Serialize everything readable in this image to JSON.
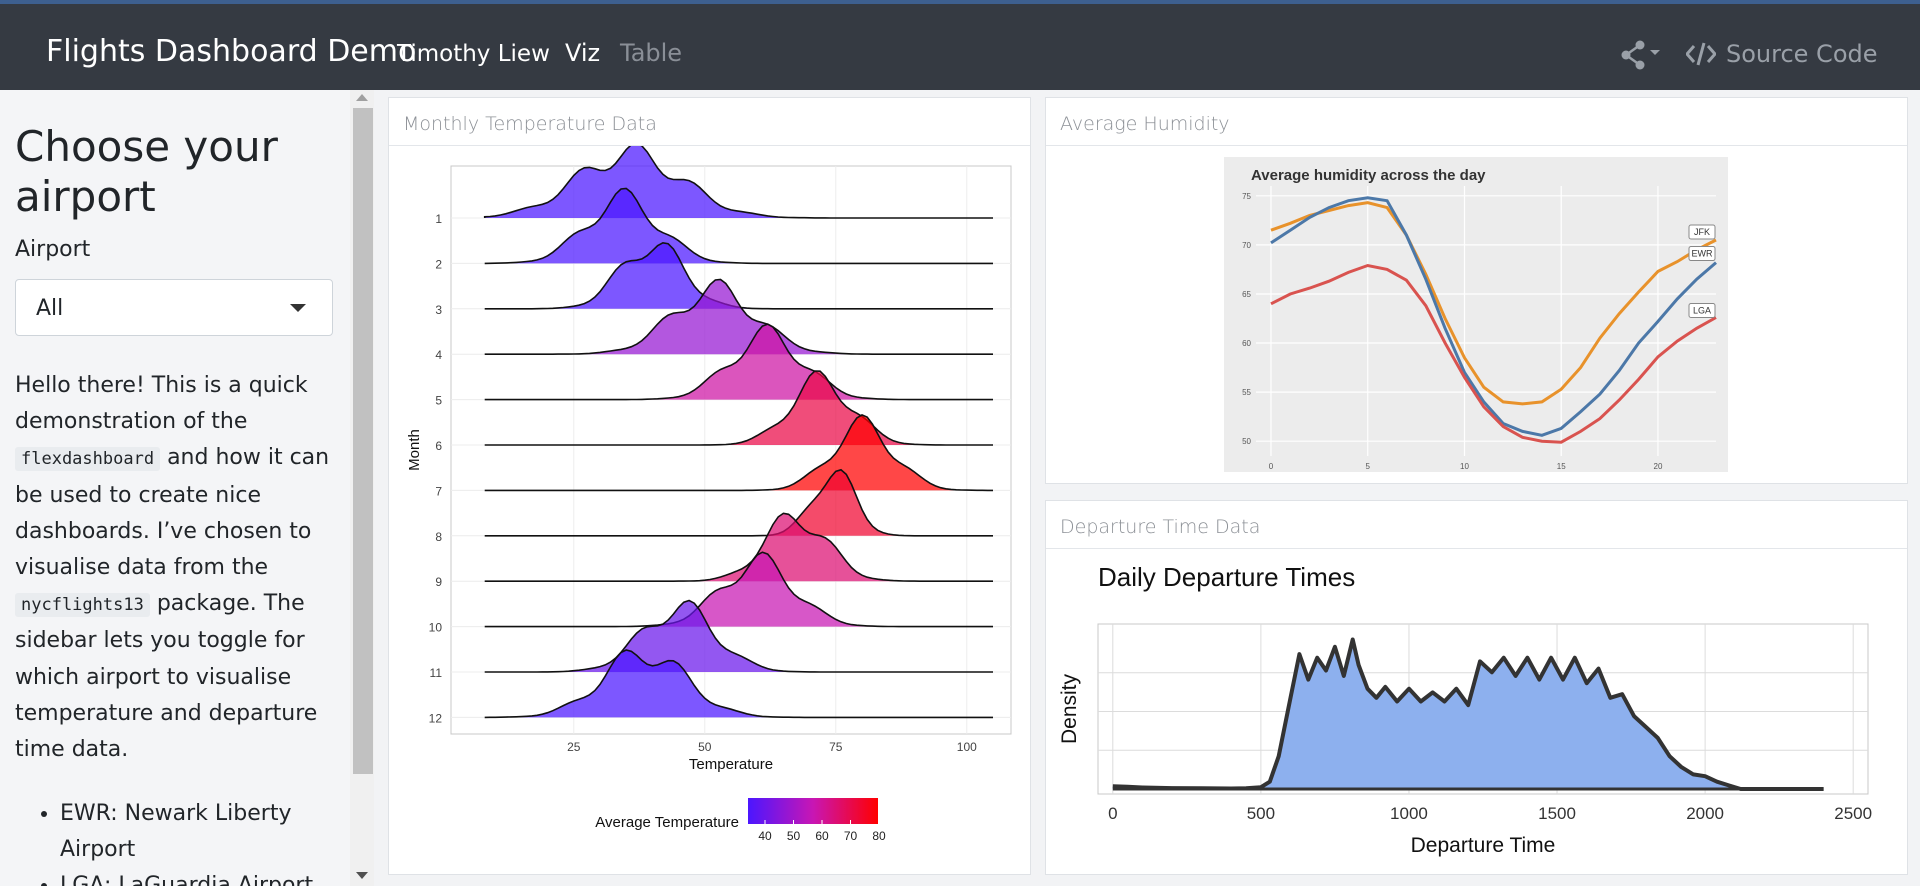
{
  "nav": {
    "title": "Flights Dashboard Demo",
    "author": "Timothy Liew",
    "tabs": [
      "Viz",
      "Table"
    ],
    "active_tab": "Viz",
    "source_label": "Source Code",
    "share_icon": "share-icon",
    "code_icon": "code-icon"
  },
  "sidebar": {
    "heading": "Choose your airport",
    "select_label": "Airport",
    "select_value": "All",
    "intro_before": "Hello there! This is a quick demonstration of the",
    "code1": "flexdashboard",
    "intro_mid": "and how it can be used to create nice dashboards. I’ve chosen to visualise data from the",
    "code2": "nycflights13",
    "intro_after": "package. The sidebar lets you toggle for which airport to visualise temperature and departure time data.",
    "airports": [
      "EWR: Newark Liberty Airport",
      "LGA: LaGuardia Airport"
    ]
  },
  "cards": {
    "temperature": "Monthly Temperature Data",
    "humidity": "Average Humidity",
    "departure": "Departure Time Data"
  },
  "chart_data": [
    {
      "type": "area",
      "subtype": "ridgeline",
      "title": "",
      "xlabel": "Temperature",
      "ylabel": "Month",
      "xlim": [
        5,
        105
      ],
      "xticks": [
        25,
        50,
        75,
        100
      ],
      "months": [
        "1",
        "2",
        "3",
        "4",
        "5",
        "6",
        "7",
        "8",
        "9",
        "10",
        "11",
        "12"
      ],
      "mean_temperature": [
        35.6,
        34.3,
        39.9,
        51.8,
        61.8,
        72.2,
        80.1,
        74.5,
        67.4,
        60.1,
        45.0,
        38.4
      ],
      "sd": [
        10,
        7,
        6,
        8,
        7,
        6,
        6,
        4,
        6,
        7,
        7,
        8
      ],
      "legend": {
        "title": "Average Temperature",
        "ticks": [
          40,
          50,
          60,
          70,
          80
        ],
        "colors": [
          "#4b16ff",
          "#ff0000"
        ],
        "position": "bottom"
      }
    },
    {
      "type": "line",
      "title": "Average humidity across the day",
      "xlabel": "",
      "ylabel": "",
      "xlim": [
        0,
        23
      ],
      "ylim": [
        49,
        76
      ],
      "xticks": [
        0,
        5,
        10,
        15,
        20
      ],
      "yticks": [
        50,
        55,
        60,
        65,
        70,
        75
      ],
      "x": [
        0,
        1,
        2,
        3,
        4,
        5,
        6,
        7,
        8,
        9,
        10,
        11,
        12,
        13,
        14,
        15,
        16,
        17,
        18,
        19,
        20,
        21,
        22,
        23
      ],
      "series": [
        {
          "name": "JFK",
          "color": "#e8922b",
          "values": [
            71.5,
            72.2,
            73.0,
            73.5,
            74.0,
            74.3,
            73.8,
            71.0,
            67.0,
            62.5,
            58.5,
            55.5,
            54.0,
            53.8,
            54.0,
            55.3,
            57.5,
            60.5,
            63.0,
            65.2,
            67.3,
            68.3,
            69.5,
            70.5
          ]
        },
        {
          "name": "EWR",
          "color": "#4c78a8",
          "values": [
            70.2,
            71.5,
            72.8,
            73.8,
            74.5,
            74.8,
            74.5,
            71.0,
            66.5,
            61.5,
            57.0,
            54.0,
            51.8,
            51.0,
            50.6,
            51.3,
            53.0,
            54.8,
            57.2,
            60.0,
            62.2,
            64.5,
            66.5,
            68.2
          ]
        },
        {
          "name": "LGA",
          "color": "#d9534f",
          "values": [
            64.0,
            65.0,
            65.6,
            66.3,
            67.2,
            67.9,
            67.5,
            66.4,
            63.8,
            60.0,
            56.5,
            53.5,
            51.5,
            50.4,
            50.0,
            49.9,
            51.0,
            52.3,
            54.2,
            56.3,
            58.6,
            60.2,
            61.5,
            62.6
          ]
        }
      ]
    },
    {
      "type": "area",
      "title": "Daily Departure Times",
      "xlabel": "Departure Time",
      "ylabel": "Density",
      "xlim": [
        -50,
        2550
      ],
      "xticks": [
        0,
        500,
        1000,
        1500,
        2000,
        2500
      ],
      "fill": "#8db0ee",
      "x": [
        0,
        50,
        100,
        200,
        300,
        400,
        450,
        500,
        530,
        560,
        600,
        630,
        660,
        690,
        720,
        750,
        780,
        810,
        830,
        860,
        890,
        920,
        960,
        1000,
        1040,
        1080,
        1120,
        1160,
        1200,
        1240,
        1280,
        1320,
        1360,
        1400,
        1440,
        1480,
        1520,
        1560,
        1600,
        1640,
        1680,
        1720,
        1760,
        1800,
        1840,
        1880,
        1920,
        1960,
        2000,
        2040,
        2080,
        2120,
        2160,
        2200,
        2250,
        2300,
        2350,
        2400
      ],
      "values": [
        0.015,
        0.012,
        0.008,
        0.005,
        0.004,
        0.003,
        0.004,
        0.01,
        0.04,
        0.18,
        0.5,
        0.74,
        0.6,
        0.72,
        0.65,
        0.78,
        0.62,
        0.82,
        0.68,
        0.55,
        0.5,
        0.56,
        0.48,
        0.55,
        0.48,
        0.53,
        0.48,
        0.55,
        0.46,
        0.7,
        0.64,
        0.72,
        0.62,
        0.72,
        0.6,
        0.72,
        0.6,
        0.72,
        0.58,
        0.66,
        0.5,
        0.52,
        0.4,
        0.34,
        0.28,
        0.18,
        0.12,
        0.08,
        0.07,
        0.04,
        0.02,
        0.0,
        0.0,
        0.0,
        0.0,
        0.0,
        0.0,
        0.0
      ]
    }
  ]
}
